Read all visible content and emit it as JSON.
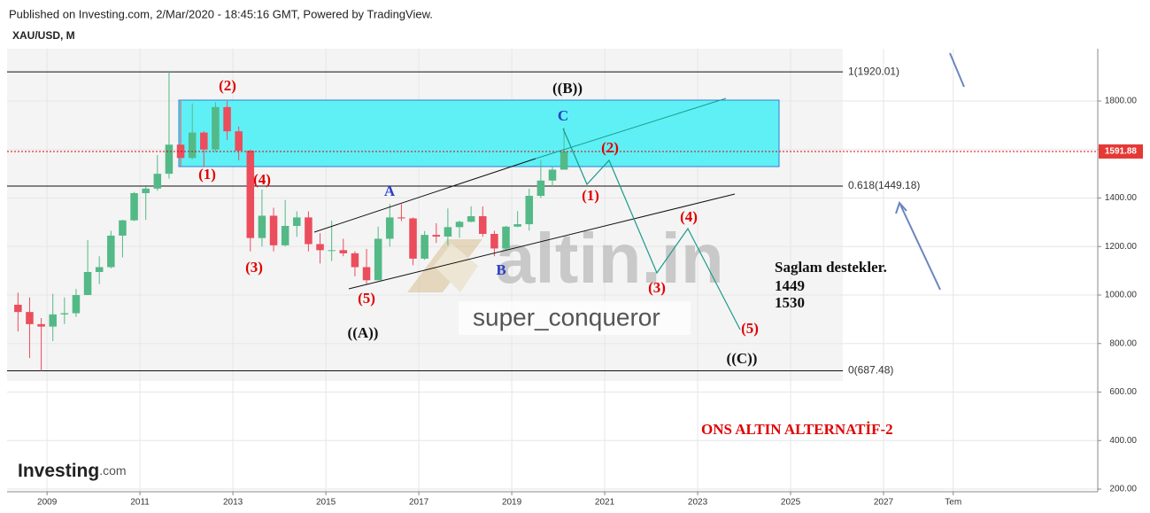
{
  "chart_data": {
    "type": "candlestick",
    "subtitle": "Published on Investing.com, 2/Mar/2020 - 18:45:16 GMT, Powered by TradingView.",
    "title": "XAU/USD, M",
    "x": [
      2008.375,
      2008.625,
      2008.875,
      2009.125,
      2009.375,
      2009.625,
      2009.875,
      2010.125,
      2010.375,
      2010.625,
      2010.875,
      2011.125,
      2011.375,
      2011.625,
      2011.875,
      2012.125,
      2012.375,
      2012.625,
      2012.875,
      2013.125,
      2013.375,
      2013.625,
      2013.875,
      2014.125,
      2014.375,
      2014.625,
      2014.875,
      2015.125,
      2015.375,
      2015.625,
      2015.875,
      2016.125,
      2016.375,
      2016.625,
      2016.875,
      2017.125,
      2017.375,
      2017.625,
      2017.875,
      2018.125,
      2018.375,
      2018.625,
      2018.875,
      2019.125,
      2019.375,
      2019.625,
      2019.875,
      2020.125
    ],
    "open": [
      960,
      930,
      880,
      870,
      920,
      925,
      1000,
      1095,
      1115,
      1245,
      1308,
      1420,
      1439,
      1500,
      1620,
      1565,
      1670,
      1600,
      1775,
      1675,
      1595,
      1235,
      1327,
      1205,
      1285,
      1320,
      1210,
      1185,
      1185,
      1172,
      1115,
      1061,
      1232,
      1320,
      1316,
      1150,
      1248,
      1241,
      1280,
      1302,
      1325,
      1252,
      1192,
      1282,
      1292,
      1409,
      1472,
      1517
    ],
    "high": [
      1010,
      990,
      905,
      1005,
      990,
      1025,
      1227,
      1160,
      1265,
      1310,
      1425,
      1448,
      1577,
      1920,
      1800,
      1790,
      1675,
      1795,
      1800,
      1695,
      1600,
      1435,
      1360,
      1392,
      1345,
      1345,
      1255,
      1307,
      1232,
      1180,
      1190,
      1282,
      1375,
      1375,
      1320,
      1264,
      1296,
      1357,
      1307,
      1366,
      1365,
      1265,
      1285,
      1346,
      1438,
      1557,
      1530,
      1689
    ],
    "low": [
      850,
      740,
      687,
      810,
      880,
      910,
      1000,
      1045,
      1110,
      1155,
      1305,
      1310,
      1430,
      1480,
      1530,
      1560,
      1527,
      1590,
      1640,
      1555,
      1180,
      1200,
      1180,
      1200,
      1240,
      1180,
      1130,
      1140,
      1160,
      1077,
      1046,
      1061,
      1200,
      1305,
      1123,
      1145,
      1215,
      1205,
      1236,
      1300,
      1240,
      1160,
      1182,
      1280,
      1266,
      1400,
      1445,
      1517
    ],
    "close": [
      930,
      880,
      870,
      920,
      925,
      1000,
      1095,
      1115,
      1245,
      1308,
      1420,
      1439,
      1500,
      1620,
      1565,
      1670,
      1600,
      1775,
      1675,
      1595,
      1235,
      1327,
      1205,
      1285,
      1320,
      1210,
      1185,
      1185,
      1172,
      1115,
      1061,
      1232,
      1320,
      1316,
      1150,
      1248,
      1241,
      1280,
      1302,
      1325,
      1252,
      1192,
      1282,
      1292,
      1409,
      1472,
      1517,
      1591.88
    ],
    "up_color": "#53b987",
    "down_color": "#eb4d5c",
    "last_price": 1591.88,
    "xlim": [
      2008.14,
      2031.61
    ],
    "xticks": [
      2009,
      2011,
      2013,
      2015,
      2017,
      2019,
      2021,
      2023,
      2025,
      2027,
      {
        "value": 2028.5,
        "label": "Tem"
      }
    ],
    "ylim": [
      189,
      2015.5
    ],
    "yticks": [
      {
        "value": 200,
        "label": "200.00"
      },
      {
        "value": 400,
        "label": "400.00"
      },
      {
        "value": 600,
        "label": "600.00"
      },
      {
        "value": 800,
        "label": "800.00"
      },
      {
        "value": 1000,
        "label": "1000.00"
      },
      {
        "value": 1200,
        "label": "1200.00"
      },
      {
        "value": 1400,
        "label": "1400.00"
      },
      {
        "value": 1600,
        "label": "1600.00"
      },
      {
        "value": 1800,
        "label": "1800.00"
      }
    ],
    "grid": true,
    "levels": [
      {
        "value": 1920.01,
        "label": "1(1920.01)"
      },
      {
        "value": 1449.18,
        "label": "0.618(1449.18)"
      },
      {
        "value": 687.48,
        "label": "0(687.48)"
      }
    ],
    "annotations": [
      {
        "text": "(2)",
        "color": "#e00000"
      },
      {
        "text": "(1)",
        "color": "#e00000"
      },
      {
        "text": "(4)",
        "color": "#e00000"
      },
      {
        "text": "(3)",
        "color": "#e00000"
      },
      {
        "text": "(5)",
        "color": "#e00000"
      },
      {
        "text": "(1)",
        "color": "#e00000"
      },
      {
        "text": "(2)",
        "color": "#e00000"
      },
      {
        "text": "(3)",
        "color": "#e00000"
      },
      {
        "text": "(4)",
        "color": "#e00000"
      },
      {
        "text": "(5)",
        "color": "#e00000"
      },
      {
        "text": "((B))",
        "color": "#111111"
      },
      {
        "text": "((A))",
        "color": "#111111"
      },
      {
        "text": "((C))",
        "color": "#111111"
      },
      {
        "text": "A",
        "color": "#2a3fc8"
      },
      {
        "text": "B",
        "color": "#2a3fc8"
      },
      {
        "text": "C",
        "color": "#2a3fc8"
      }
    ],
    "notes": [
      "Saglam destekler.",
      "1449",
      "1530"
    ],
    "scenario": "ONS ALTIN ALTERNATİF-2"
  },
  "branding": {
    "watermark": "altin.in",
    "author": "super_conqueror",
    "logo": "Investing",
    "logo_suffix": ".com"
  }
}
